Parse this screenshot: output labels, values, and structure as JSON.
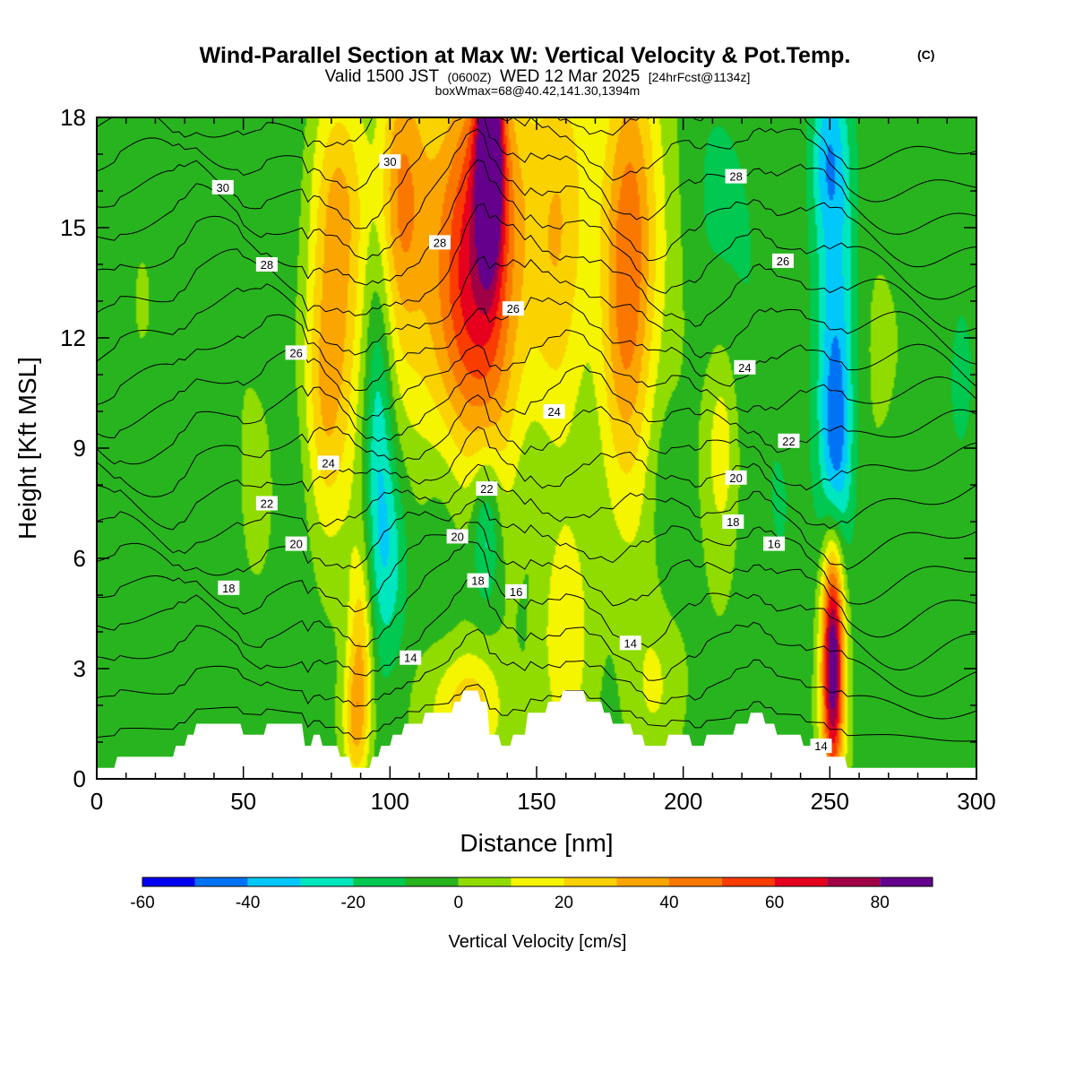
{
  "header": {
    "title": "Wind-Parallel Section at Max W: Vertical Velocity & Pot.Temp.",
    "title_mark": "(C)",
    "valid_prefix": "Valid 1500 JST",
    "valid_utc": "(0600Z)",
    "valid_date": "WED 12 Mar 2025",
    "forecast_info": "[24hrFcst@1134z]",
    "box_info": "boxWmax=68@40.42,141.30,1394m"
  },
  "chart_data": {
    "type": "heatmap",
    "title": "Wind-Parallel Section at Max W: Vertical Velocity & Pot.Temp.",
    "xlabel": "Distance [nm]",
    "ylabel": "Height [Kft MSL]",
    "xlim": [
      0,
      300
    ],
    "ylim": [
      0,
      18
    ],
    "x_ticks": [
      0,
      50,
      100,
      150,
      200,
      250,
      300
    ],
    "y_ticks": [
      0,
      3,
      6,
      9,
      12,
      15,
      18
    ],
    "colorbar": {
      "label": "Vertical Velocity [cm/s]",
      "levels": [
        -60,
        -50,
        -40,
        -30,
        -20,
        -10,
        0,
        10,
        20,
        30,
        40,
        50,
        60,
        70,
        80,
        90
      ],
      "tick_values": [
        -60,
        -40,
        -20,
        0,
        20,
        40,
        60,
        80
      ],
      "tick_labels": [
        "-60",
        "-40",
        "-20",
        "0",
        "20",
        "40",
        "60",
        "80"
      ],
      "colors": [
        "#0000f0",
        "#0073f5",
        "#00c8fa",
        "#00e6be",
        "#00c850",
        "#28b41e",
        "#91dc00",
        "#f5f500",
        "#fad200",
        "#faa500",
        "#fa7800",
        "#fa3c00",
        "#e6001e",
        "#a00046",
        "#64008c"
      ]
    },
    "vertical_velocity_field": {
      "units": "cm/s",
      "background": -3,
      "features": [
        {
          "x": 15,
          "z": 13,
          "w": 3,
          "sx": 12,
          "sz": 6
        },
        {
          "x": 50,
          "z": 11,
          "w": 4,
          "sx": 12,
          "sz": 4
        },
        {
          "x": 30,
          "z": 4,
          "w": 2,
          "sx": 10,
          "sz": 2
        },
        {
          "x": 58,
          "z": 17,
          "w": -6,
          "sx": 10,
          "sz": 3
        },
        {
          "x": 65,
          "z": 13,
          "w": -3,
          "sx": 8,
          "sz": 6
        },
        {
          "x": 67,
          "z": 8,
          "w": -6,
          "sx": 6,
          "sz": 2
        },
        {
          "x": 64,
          "z": 4,
          "w": -4,
          "sx": 8,
          "sz": 2
        },
        {
          "x": 82,
          "z": 13,
          "w": 30,
          "sx": 7,
          "sz": 4
        },
        {
          "x": 77,
          "z": 10,
          "w": 18,
          "sx": 5,
          "sz": 2.5
        },
        {
          "x": 83,
          "z": 16,
          "w": 14,
          "sx": 7,
          "sz": 2
        },
        {
          "x": 55,
          "z": 7.5,
          "w": 14,
          "sx": 4,
          "sz": 1.5
        },
        {
          "x": 90,
          "z": 3.5,
          "w": 30,
          "sx": 3,
          "sz": 2
        },
        {
          "x": 88,
          "z": 1.5,
          "w": 25,
          "sx": 3,
          "sz": 1.2
        },
        {
          "x": 96,
          "z": 9,
          "w": -28,
          "sx": 3.5,
          "sz": 3.5
        },
        {
          "x": 101,
          "z": 6,
          "w": -18,
          "sx": 4,
          "sz": 2
        },
        {
          "x": 103,
          "z": 16,
          "w": 30,
          "sx": 5,
          "sz": 3
        },
        {
          "x": 108,
          "z": 13,
          "w": 12,
          "sx": 8,
          "sz": 4
        },
        {
          "x": 110,
          "z": 17,
          "w": 10,
          "sx": 6,
          "sz": 3
        },
        {
          "x": 132,
          "z": 15.5,
          "w": 55,
          "sx": 11,
          "sz": 3.5
        },
        {
          "x": 126,
          "z": 12,
          "w": 30,
          "sx": 9,
          "sz": 3
        },
        {
          "x": 134,
          "z": 17,
          "w": 82,
          "sx": 3,
          "sz": 2
        },
        {
          "x": 137,
          "z": 9,
          "w": 12,
          "sx": 6,
          "sz": 3
        },
        {
          "x": 133,
          "z": 6.8,
          "w": -30,
          "sx": 3.5,
          "sz": 1.5
        },
        {
          "x": 118,
          "z": 7,
          "w": -8,
          "sx": 6,
          "sz": 2
        },
        {
          "x": 125,
          "z": 1.8,
          "w": 20,
          "sx": 10,
          "sz": 1.2
        },
        {
          "x": 128,
          "z": 2.2,
          "w": 10,
          "sx": 6,
          "sz": 1
        },
        {
          "x": 157,
          "z": 13,
          "w": 22,
          "sx": 7,
          "sz": 4
        },
        {
          "x": 160,
          "z": 17,
          "w": 14,
          "sx": 7,
          "sz": 3
        },
        {
          "x": 160,
          "z": 4,
          "w": 22,
          "sx": 6,
          "sz": 2.5
        },
        {
          "x": 155,
          "z": 7.5,
          "w": -6,
          "sx": 8,
          "sz": 2
        },
        {
          "x": 182,
          "z": 15.5,
          "w": 42,
          "sx": 7,
          "sz": 3.5
        },
        {
          "x": 180,
          "z": 11,
          "w": 24,
          "sx": 6,
          "sz": 3
        },
        {
          "x": 186,
          "z": 6,
          "w": 5,
          "sx": 8,
          "sz": 2
        },
        {
          "x": 197,
          "z": 14,
          "w": 6,
          "sx": 5,
          "sz": 4
        },
        {
          "x": 195,
          "z": 7.5,
          "w": -10,
          "sx": 4,
          "sz": 2
        },
        {
          "x": 190,
          "z": 2.5,
          "w": 14,
          "sx": 6,
          "sz": 1.5
        },
        {
          "x": 210,
          "z": 16,
          "w": -8,
          "sx": 10,
          "sz": 3
        },
        {
          "x": 213,
          "z": 9,
          "w": 20,
          "sx": 4,
          "sz": 2
        },
        {
          "x": 213,
          "z": 3.5,
          "w": 2,
          "sx": 8,
          "sz": 2
        },
        {
          "x": 225,
          "z": 12,
          "w": -5,
          "sx": 8,
          "sz": 4
        },
        {
          "x": 234,
          "z": 7,
          "w": -6,
          "sx": 6,
          "sz": 2.5
        },
        {
          "x": 252,
          "z": 13,
          "w": -30,
          "sx": 5,
          "sz": 4.5
        },
        {
          "x": 252,
          "z": 9,
          "w": -28,
          "sx": 3.5,
          "sz": 2
        },
        {
          "x": 249,
          "z": 17,
          "w": -20,
          "sx": 4,
          "sz": 1.5
        },
        {
          "x": 251,
          "z": 3.5,
          "w": 60,
          "sx": 2.5,
          "sz": 2.2
        },
        {
          "x": 251,
          "z": 2.5,
          "w": 40,
          "sx": 3,
          "sz": 2.5
        },
        {
          "x": 266,
          "z": 13,
          "w": 6,
          "sx": 8,
          "sz": 4
        },
        {
          "x": 278,
          "z": 6,
          "w": -6,
          "sx": 8,
          "sz": 2.5
        },
        {
          "x": 295,
          "z": 11,
          "w": -8,
          "sx": 6,
          "sz": 3
        },
        {
          "x": 285,
          "z": 2.5,
          "w": 4,
          "sx": 10,
          "sz": 2
        },
        {
          "x": 270,
          "z": 16,
          "w": -5,
          "sx": 10,
          "sz": 2
        },
        {
          "x": 40,
          "z": 7,
          "w": -8,
          "sx": 10,
          "sz": 2
        }
      ]
    },
    "terrain": [
      [
        0,
        0.3
      ],
      [
        6,
        0.3
      ],
      [
        7,
        0.6
      ],
      [
        26,
        0.6
      ],
      [
        27,
        0.9
      ],
      [
        30,
        0.9
      ],
      [
        31,
        1.2
      ],
      [
        33,
        1.2
      ],
      [
        34,
        1.5
      ],
      [
        49,
        1.5
      ],
      [
        50,
        1.2
      ],
      [
        57,
        1.2
      ],
      [
        58,
        1.5
      ],
      [
        70,
        1.5
      ],
      [
        71,
        0.9
      ],
      [
        73,
        0.9
      ],
      [
        74,
        1.2
      ],
      [
        76,
        1.2
      ],
      [
        77,
        0.9
      ],
      [
        82,
        0.9
      ],
      [
        83,
        0.6
      ],
      [
        86,
        0.6
      ],
      [
        87,
        0.3
      ],
      [
        93,
        0.3
      ],
      [
        94,
        0.6
      ],
      [
        96,
        0.6
      ],
      [
        97,
        0.9
      ],
      [
        100,
        0.9
      ],
      [
        101,
        1.2
      ],
      [
        104,
        1.2
      ],
      [
        105,
        1.5
      ],
      [
        111,
        1.5
      ],
      [
        112,
        1.8
      ],
      [
        121,
        1.8
      ],
      [
        122,
        2.1
      ],
      [
        124,
        2.1
      ],
      [
        125,
        2.4
      ],
      [
        130,
        2.4
      ],
      [
        131,
        2.1
      ],
      [
        133,
        2.1
      ],
      [
        134,
        1.2
      ],
      [
        137,
        1.2
      ],
      [
        138,
        0.9
      ],
      [
        141,
        0.9
      ],
      [
        142,
        1.2
      ],
      [
        146,
        1.2
      ],
      [
        147,
        1.8
      ],
      [
        153,
        1.8
      ],
      [
        154,
        2.1
      ],
      [
        158,
        2.1
      ],
      [
        159,
        2.4
      ],
      [
        166,
        2.4
      ],
      [
        167,
        2.1
      ],
      [
        172,
        2.1
      ],
      [
        173,
        1.8
      ],
      [
        175,
        1.8
      ],
      [
        176,
        1.5
      ],
      [
        182,
        1.5
      ],
      [
        183,
        1.2
      ],
      [
        186,
        1.2
      ],
      [
        187,
        0.9
      ],
      [
        194,
        0.9
      ],
      [
        195,
        1.2
      ],
      [
        202,
        1.2
      ],
      [
        203,
        0.9
      ],
      [
        207,
        0.9
      ],
      [
        208,
        1.2
      ],
      [
        217,
        1.2
      ],
      [
        218,
        1.5
      ],
      [
        222,
        1.5
      ],
      [
        223,
        1.8
      ],
      [
        227,
        1.8
      ],
      [
        228,
        1.5
      ],
      [
        231,
        1.5
      ],
      [
        232,
        1.2
      ],
      [
        240,
        1.2
      ],
      [
        241,
        0.9
      ],
      [
        248,
        0.9
      ],
      [
        249,
        0.6
      ],
      [
        255,
        0.6
      ],
      [
        256,
        0.3
      ],
      [
        300,
        0.3
      ]
    ],
    "theta_levels": [
      13,
      14,
      15,
      16,
      17,
      18,
      19,
      20,
      21,
      22,
      23,
      24,
      25,
      26,
      27,
      28,
      29,
      30,
      31
    ],
    "theta_label_levels": [
      14,
      16,
      18,
      20,
      22,
      24,
      26,
      28,
      30
    ],
    "contour_labels": [
      {
        "text": "30",
        "x": 43,
        "z": 16.1
      },
      {
        "text": "30",
        "x": 100,
        "z": 16.8
      },
      {
        "text": "28",
        "x": 218,
        "z": 16.4
      },
      {
        "text": "28",
        "x": 58,
        "z": 14.0
      },
      {
        "text": "28",
        "x": 117,
        "z": 14.6
      },
      {
        "text": "26",
        "x": 234,
        "z": 14.1
      },
      {
        "text": "26",
        "x": 142,
        "z": 12.8
      },
      {
        "text": "26",
        "x": 68,
        "z": 11.6
      },
      {
        "text": "24",
        "x": 221,
        "z": 11.2
      },
      {
        "text": "24",
        "x": 156,
        "z": 10.0
      },
      {
        "text": "24",
        "x": 79,
        "z": 8.6
      },
      {
        "text": "22",
        "x": 236,
        "z": 9.2
      },
      {
        "text": "22",
        "x": 133,
        "z": 7.9
      },
      {
        "text": "22",
        "x": 58,
        "z": 7.5
      },
      {
        "text": "20",
        "x": 218,
        "z": 8.2
      },
      {
        "text": "20",
        "x": 123,
        "z": 6.6
      },
      {
        "text": "20",
        "x": 68,
        "z": 6.4
      },
      {
        "text": "18",
        "x": 217,
        "z": 7.0
      },
      {
        "text": "18",
        "x": 130,
        "z": 5.4
      },
      {
        "text": "18",
        "x": 45,
        "z": 5.2
      },
      {
        "text": "16",
        "x": 231,
        "z": 6.4
      },
      {
        "text": "16",
        "x": 143,
        "z": 5.1
      },
      {
        "text": "14",
        "x": 182,
        "z": 3.7
      },
      {
        "text": "14",
        "x": 107,
        "z": 3.3
      },
      {
        "text": "14",
        "x": 247,
        "z": 0.9
      }
    ]
  }
}
